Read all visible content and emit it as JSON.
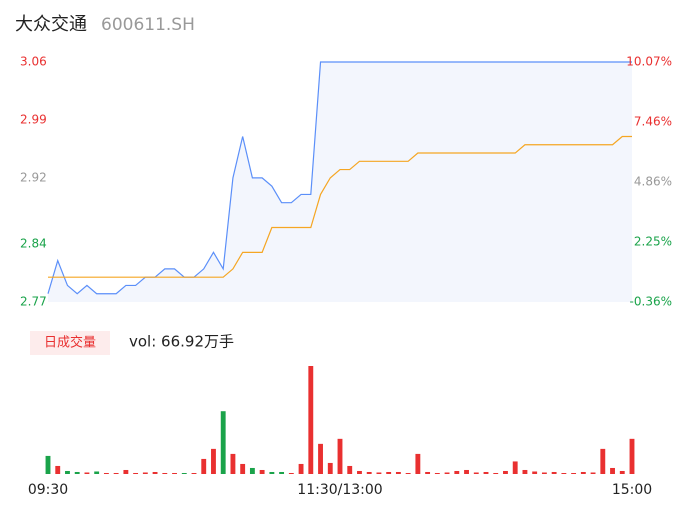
{
  "chart_data": [
    {
      "type": "line",
      "title": "大众交通",
      "subtitle": "600611.SH",
      "x": [
        0,
        4,
        8,
        12,
        16,
        20,
        24,
        28,
        32,
        36,
        40,
        44,
        48,
        52,
        56,
        60,
        64,
        68,
        72,
        76,
        80,
        84,
        88,
        92,
        96,
        100,
        104,
        108,
        112,
        116,
        120,
        124,
        128,
        132,
        136,
        140,
        144,
        148,
        152,
        156,
        160,
        164,
        168,
        172,
        176,
        180,
        184,
        188,
        192,
        196,
        200,
        204,
        208,
        212,
        216,
        220,
        224,
        228,
        232,
        236,
        240
      ],
      "xlim": [
        0,
        240
      ],
      "xticks": [
        {
          "value": 0,
          "label": "09:30"
        },
        {
          "value": 120,
          "label": "11:30/13:00"
        },
        {
          "value": 240,
          "label": "15:00"
        }
      ],
      "ylim": [
        2.77,
        3.06
      ],
      "yticks": [
        3.06,
        2.99,
        2.92,
        2.84,
        2.77
      ],
      "ytick_colors": [
        "#e93030",
        "#e93030",
        "#999999",
        "#1aa34a",
        "#1aa34a"
      ],
      "y2lim": [
        -0.36,
        10.07
      ],
      "y2ticks": [
        {
          "value": 10.07,
          "label": "10.07%"
        },
        {
          "value": 7.46,
          "label": "7.46%"
        },
        {
          "value": 4.86,
          "label": "4.86%"
        },
        {
          "value": 2.25,
          "label": "2.25%"
        },
        {
          "value": -0.36,
          "label": "-0.36%"
        }
      ],
      "y2tick_colors": [
        "#e93030",
        "#e93030",
        "#999999",
        "#1aa34a",
        "#1aa34a"
      ],
      "series": [
        {
          "color": "#5b8ff9",
          "fill": "#f3f6fd",
          "values": [
            2.78,
            2.82,
            2.79,
            2.78,
            2.79,
            2.78,
            2.78,
            2.78,
            2.79,
            2.79,
            2.8,
            2.8,
            2.81,
            2.81,
            2.8,
            2.8,
            2.81,
            2.83,
            2.81,
            2.92,
            2.97,
            2.92,
            2.92,
            2.91,
            2.89,
            2.89,
            2.9,
            2.9,
            3.06,
            3.06,
            3.06,
            3.06,
            3.06,
            3.06,
            3.06,
            3.06,
            3.06,
            3.06,
            3.06,
            3.06,
            3.06,
            3.06,
            3.06,
            3.06,
            3.06,
            3.06,
            3.06,
            3.06,
            3.06,
            3.06,
            3.06,
            3.06,
            3.06,
            3.06,
            3.06,
            3.06,
            3.06,
            3.06,
            3.06,
            3.06,
            3.06
          ]
        },
        {
          "color": "#f5a623",
          "values": [
            2.8,
            2.8,
            2.8,
            2.8,
            2.8,
            2.8,
            2.8,
            2.8,
            2.8,
            2.8,
            2.8,
            2.8,
            2.8,
            2.8,
            2.8,
            2.8,
            2.8,
            2.8,
            2.8,
            2.81,
            2.83,
            2.83,
            2.83,
            2.86,
            2.86,
            2.86,
            2.86,
            2.86,
            2.9,
            2.92,
            2.93,
            2.93,
            2.94,
            2.94,
            2.94,
            2.94,
            2.94,
            2.94,
            2.95,
            2.95,
            2.95,
            2.95,
            2.95,
            2.95,
            2.95,
            2.95,
            2.95,
            2.95,
            2.95,
            2.96,
            2.96,
            2.96,
            2.96,
            2.96,
            2.96,
            2.96,
            2.96,
            2.96,
            2.96,
            2.97,
            2.97
          ]
        }
      ]
    },
    {
      "type": "bar",
      "legend_label": "日成交量",
      "annotation": "vol: 66.92万手",
      "up_color": "#e93030",
      "down_color": "#1aa34a",
      "values": [
        7200,
        3200,
        1200,
        800,
        600,
        1000,
        400,
        400,
        1600,
        400,
        600,
        800,
        400,
        400,
        400,
        400,
        6000,
        10000,
        25000,
        8000,
        4000,
        2400,
        1600,
        800,
        800,
        400,
        4000,
        43000,
        12000,
        4400,
        14000,
        3200,
        1200,
        800,
        600,
        800,
        800,
        400,
        8000,
        800,
        400,
        600,
        1200,
        1600,
        600,
        800,
        400,
        1200,
        5000,
        1600,
        1000,
        600,
        800,
        400,
        400,
        800,
        600,
        10000,
        2400,
        1200,
        14000
      ]
    }
  ]
}
